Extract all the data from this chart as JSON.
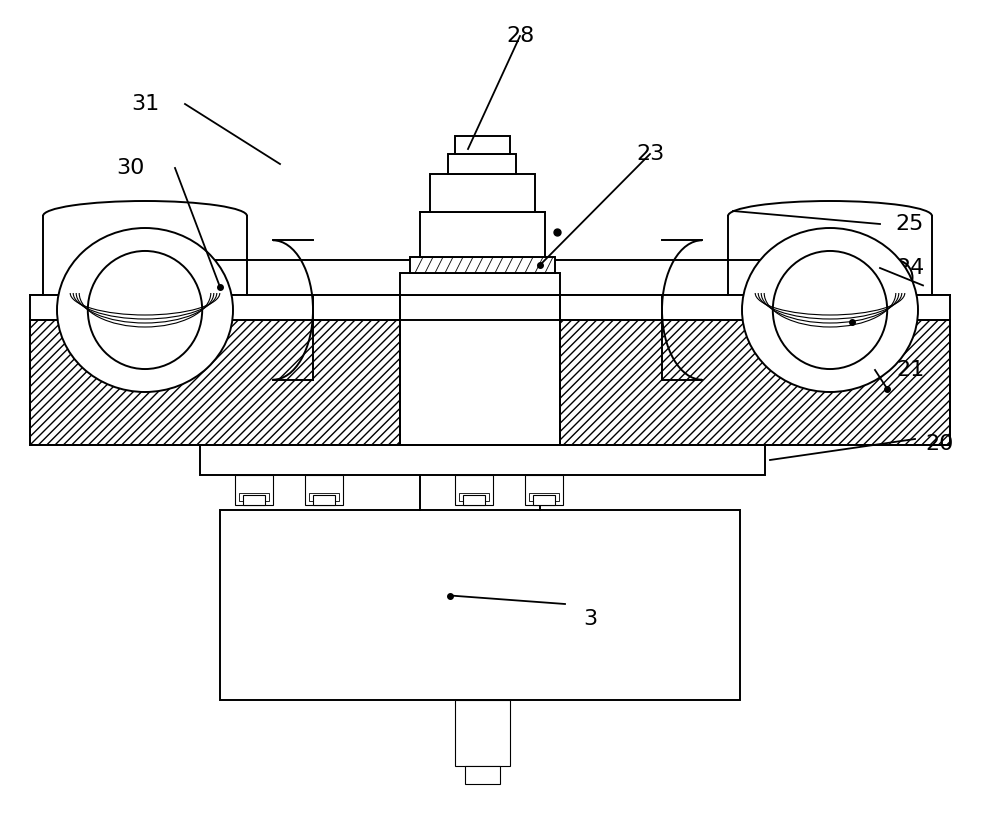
{
  "bg": "#ffffff",
  "lc": "#000000",
  "figsize": [
    10.0,
    8.14
  ],
  "dpi": 100,
  "lw": 1.4,
  "lw_thin": 0.8,
  "label_fs": 16
}
